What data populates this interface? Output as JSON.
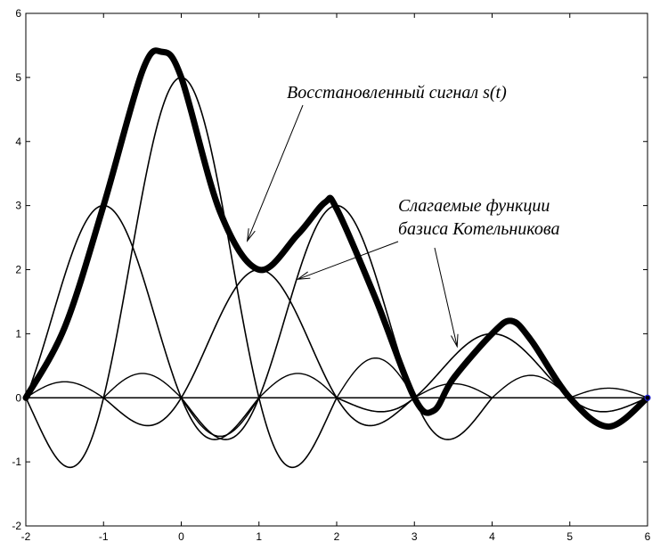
{
  "chart_data": {
    "type": "line",
    "title": "",
    "xlabel": "",
    "ylabel": "",
    "xlim": [
      -2,
      6
    ],
    "ylim": [
      -2,
      6
    ],
    "xticks": [
      -2,
      -1,
      0,
      1,
      2,
      3,
      4,
      5,
      6
    ],
    "yticks": [
      -2,
      -1,
      0,
      1,
      2,
      3,
      4,
      5,
      6
    ],
    "grid": false,
    "samples": {
      "t": [
        -2,
        -1,
        0,
        1,
        2,
        3,
        4,
        5,
        6
      ],
      "values": [
        0,
        3,
        5,
        2,
        3,
        0,
        1,
        0,
        0
      ]
    },
    "reconstructed_signal": {
      "name": "s(t)",
      "x": [
        -2,
        -1.5,
        -1,
        -0.5,
        -0.25,
        0,
        0.5,
        1,
        1.5,
        1.85,
        2,
        2.5,
        3,
        3.25,
        3.5,
        4,
        4.25,
        4.5,
        5,
        5.5,
        6
      ],
      "y": [
        0,
        1.1,
        3.0,
        5.1,
        5.4,
        5.0,
        2.9,
        2.0,
        2.55,
        3.05,
        2.95,
        1.55,
        0.0,
        -0.2,
        0.3,
        1.0,
        1.2,
        0.9,
        0.0,
        -0.45,
        0.0
      ]
    },
    "annotations": [
      {
        "text": "Восстановленный сигнал  s(t)",
        "arrows_to": [
          [
            0.85,
            2.45
          ]
        ]
      },
      {
        "text_lines": [
          "Слагаемые функции",
          "базиса Котельникова"
        ],
        "arrows_to": [
          [
            1.5,
            1.85
          ],
          [
            3.55,
            0.8
          ]
        ]
      }
    ]
  }
}
